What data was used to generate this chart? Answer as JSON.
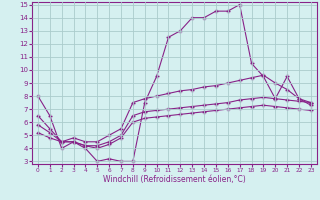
{
  "x": [
    0,
    1,
    2,
    3,
    4,
    5,
    6,
    7,
    8,
    9,
    10,
    11,
    12,
    13,
    14,
    15,
    16,
    17,
    18,
    19,
    20,
    21,
    22,
    23
  ],
  "curve1": [
    8.0,
    6.5,
    4.0,
    4.5,
    4.0,
    3.0,
    3.2,
    3.0,
    3.0,
    7.5,
    9.5,
    12.5,
    13.0,
    14.0,
    14.0,
    14.5,
    14.5,
    15.0,
    10.5,
    9.5,
    7.8,
    9.5,
    7.8,
    7.3
  ],
  "curve2": [
    6.5,
    5.5,
    4.5,
    4.8,
    4.5,
    4.5,
    5.0,
    5.5,
    7.5,
    7.8,
    8.0,
    8.2,
    8.4,
    8.5,
    8.7,
    8.8,
    9.0,
    9.2,
    9.4,
    9.6,
    9.0,
    8.5,
    7.8,
    7.5
  ],
  "curve3": [
    5.8,
    5.2,
    4.5,
    4.5,
    4.2,
    4.2,
    4.5,
    5.0,
    6.5,
    6.8,
    6.9,
    7.0,
    7.1,
    7.2,
    7.3,
    7.4,
    7.5,
    7.7,
    7.8,
    7.9,
    7.8,
    7.7,
    7.6,
    7.5
  ],
  "curve4": [
    5.2,
    4.8,
    4.5,
    4.5,
    4.2,
    4.0,
    4.3,
    4.8,
    6.0,
    6.3,
    6.4,
    6.5,
    6.6,
    6.7,
    6.8,
    6.9,
    7.0,
    7.1,
    7.2,
    7.3,
    7.2,
    7.1,
    7.0,
    6.9
  ],
  "line_color": "#882288",
  "bg_color": "#d5f0f0",
  "grid_color": "#aacccc",
  "xlabel": "Windchill (Refroidissement éolien,°C)",
  "ylim": [
    3,
    15
  ],
  "xlim": [
    0,
    23
  ],
  "yticks": [
    3,
    4,
    5,
    6,
    7,
    8,
    9,
    10,
    11,
    12,
    13,
    14,
    15
  ],
  "xticks": [
    0,
    1,
    2,
    3,
    4,
    5,
    6,
    7,
    8,
    9,
    10,
    11,
    12,
    13,
    14,
    15,
    16,
    17,
    18,
    19,
    20,
    21,
    22,
    23
  ]
}
